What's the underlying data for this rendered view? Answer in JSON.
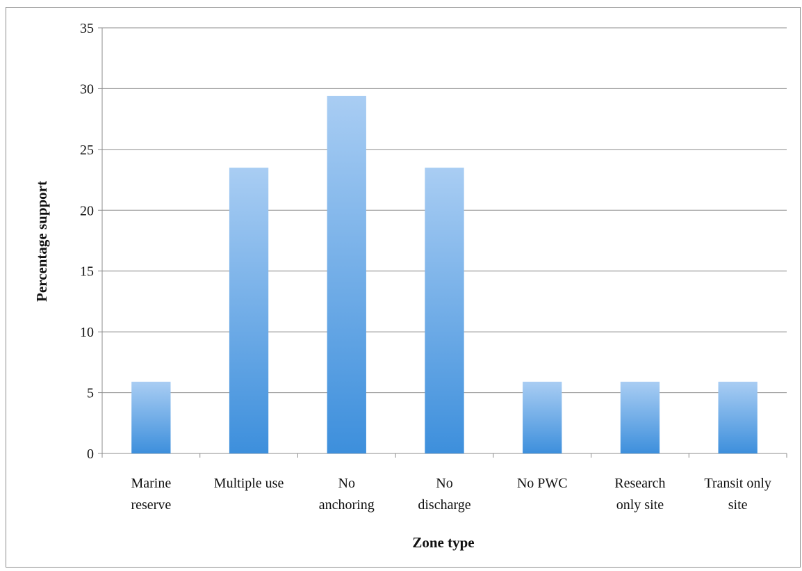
{
  "chart_data": {
    "type": "bar",
    "categories": [
      [
        "Marine",
        "reserve"
      ],
      [
        "Multiple use"
      ],
      [
        "No",
        "anchoring"
      ],
      [
        "No",
        "discharge"
      ],
      [
        "No PWC"
      ],
      [
        "Research",
        "only site"
      ],
      [
        "Transit only",
        "site"
      ]
    ],
    "values": [
      5.9,
      23.5,
      29.4,
      23.5,
      5.9,
      5.9,
      5.9
    ],
    "xlabel": "Zone type",
    "ylabel": "Percentage support",
    "ylim": [
      0,
      35
    ],
    "yticks": [
      0,
      5,
      10,
      15,
      20,
      25,
      30,
      35
    ],
    "grid": true,
    "legend": "none",
    "colors": {
      "bar_top": "#a9cdf3",
      "bar_bottom": "#3d8fdc",
      "grid": "#8c8c8c",
      "axis": "#8c8c8c"
    }
  }
}
